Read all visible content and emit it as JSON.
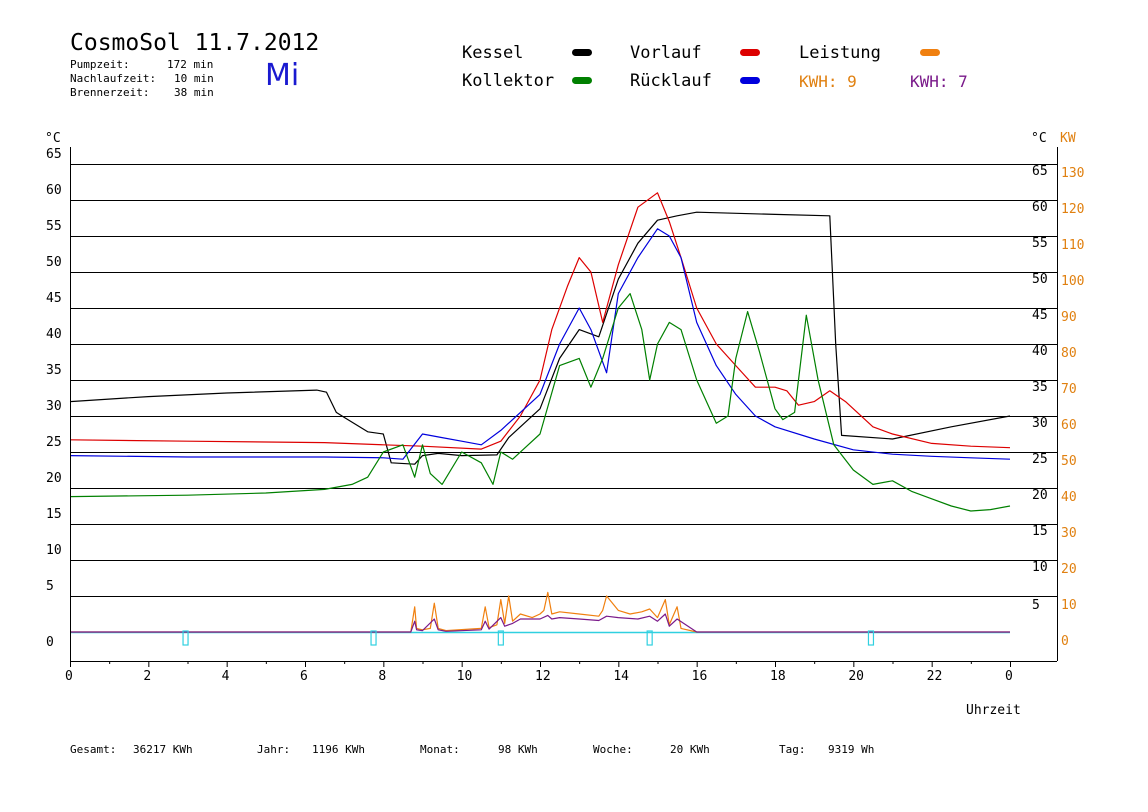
{
  "header": {
    "title": "CosmoSol 11.7.2012",
    "weekday": "Mi",
    "stats": [
      {
        "label": "Pumpzeit:",
        "value": "172 min"
      },
      {
        "label": "Nachlaufzeit:",
        "value": "10 min"
      },
      {
        "label": "Brennerzeit:",
        "value": "38 min"
      }
    ]
  },
  "legend": {
    "items": [
      {
        "name": "Kessel",
        "color": "#000000"
      },
      {
        "name": "Vorlauf",
        "color": "#dd0000"
      },
      {
        "name": "Leistung",
        "color": "#f08010"
      },
      {
        "name": "Kollektor",
        "color": "#008000"
      },
      {
        "name": "Rücklauf",
        "color": "#0000dd"
      }
    ],
    "kwh_orange": "KWH: 9",
    "kwh_purple": "KWH: 7",
    "kwh_orange_color": "#e08010",
    "kwh_purple_color": "#7a1a8a"
  },
  "footer": {
    "items": [
      {
        "label": "Gesamt:",
        "value": "36217 KWh"
      },
      {
        "label": "Jahr:",
        "value": "1196 KWh"
      },
      {
        "label": "Monat:",
        "value": "98 KWh"
      },
      {
        "label": "Woche:",
        "value": "20 KWh"
      },
      {
        "label": "Tag:",
        "value": "9319 Wh"
      }
    ]
  },
  "chart_data": {
    "type": "line",
    "xlabel": "Uhrzeit",
    "ylabel_left": "°C",
    "ylabel_right_temp": "°C",
    "ylabel_right_power": "KW",
    "xlim": [
      0,
      24
    ],
    "ylim": [
      -4,
      70
    ],
    "x_ticks": [
      "0",
      "2",
      "4",
      "6",
      "8",
      "10",
      "12",
      "14",
      "16",
      "18",
      "20",
      "22",
      "0"
    ],
    "y_ticks_left": [
      "0",
      "5",
      "10",
      "15",
      "20",
      "25",
      "30",
      "35",
      "40",
      "45",
      "50",
      "55",
      "60",
      "65"
    ],
    "y_ticks_right": [
      "5",
      "10",
      "15",
      "20",
      "25",
      "30",
      "35",
      "40",
      "45",
      "50",
      "55",
      "60",
      "65"
    ],
    "y_ticks_power": [
      "0",
      "10",
      "20",
      "30",
      "40",
      "50",
      "60",
      "70",
      "80",
      "90",
      "100",
      "110",
      "120",
      "130"
    ],
    "pump_markers_x": [
      2.95,
      7.75,
      11.0,
      14.8,
      20.45
    ],
    "series": [
      {
        "name": "Kessel",
        "color": "#000000",
        "x": [
          0,
          2,
          4,
          6.3,
          6.55,
          6.8,
          7.0,
          7.6,
          8.0,
          8.2,
          8.8,
          9.0,
          9.4,
          10.0,
          10.9,
          11.2,
          12.0,
          12.5,
          13.0,
          13.5,
          14.0,
          14.5,
          15.0,
          15.5,
          16.0,
          18.0,
          19.4,
          19.55,
          19.7,
          21.0,
          22.5,
          24.0
        ],
        "y": [
          32,
          32.7,
          33.2,
          33.6,
          33.3,
          30.5,
          29.8,
          27.8,
          27.5,
          23.5,
          23.3,
          24.5,
          24.8,
          24.5,
          24.6,
          27.0,
          31.0,
          38.0,
          42.0,
          41.0,
          49.0,
          54.0,
          57.2,
          57.8,
          58.3,
          58.0,
          57.8,
          40.0,
          27.3,
          26.8,
          28.5,
          30.0
        ]
      },
      {
        "name": "Vorlauf",
        "color": "#dd0000",
        "x": [
          0,
          3,
          6.5,
          8.0,
          9.0,
          10.5,
          11.0,
          11.5,
          12.0,
          12.3,
          12.7,
          13.0,
          13.3,
          13.6,
          14.0,
          14.5,
          15.0,
          15.3,
          15.6,
          16.0,
          16.5,
          17.0,
          17.5,
          18.0,
          18.3,
          18.6,
          19.0,
          19.4,
          19.8,
          20.5,
          21.0,
          22.0,
          23.0,
          24.0
        ],
        "y": [
          26.7,
          26.5,
          26.3,
          26.0,
          25.8,
          25.4,
          26.5,
          30.0,
          35.0,
          42.0,
          48.0,
          52.0,
          50.0,
          43.0,
          51.0,
          59.0,
          61.0,
          57.0,
          52.0,
          45.0,
          40.0,
          37.0,
          34.0,
          34.0,
          33.5,
          31.5,
          32.0,
          33.5,
          32.0,
          28.5,
          27.5,
          26.2,
          25.8,
          25.6
        ]
      },
      {
        "name": "Rücklauf",
        "color": "#0000dd",
        "x": [
          0,
          3,
          6.5,
          8.0,
          8.5,
          9.0,
          9.5,
          10.0,
          10.5,
          11.0,
          11.5,
          12.0,
          12.5,
          13.0,
          13.3,
          13.7,
          14.0,
          14.5,
          15.0,
          15.3,
          15.6,
          16.0,
          16.5,
          17.0,
          17.5,
          18.0,
          19.0,
          20.0,
          21.0,
          22.0,
          23.0,
          24.0
        ],
        "y": [
          24.5,
          24.3,
          24.3,
          24.2,
          24.0,
          27.5,
          27.0,
          26.5,
          26.0,
          28.0,
          30.5,
          33.0,
          40.0,
          45.0,
          42.0,
          36.0,
          47.0,
          52.0,
          56.0,
          55.0,
          52.0,
          43.0,
          37.0,
          33.0,
          30.0,
          28.5,
          26.8,
          25.3,
          24.7,
          24.4,
          24.2,
          24.0
        ]
      },
      {
        "name": "Kollektor",
        "color": "#008000",
        "x": [
          0,
          3,
          5,
          6.5,
          7.2,
          7.6,
          8.0,
          8.5,
          8.8,
          9.0,
          9.2,
          9.5,
          10.0,
          10.5,
          10.8,
          11.0,
          11.3,
          11.6,
          12.0,
          12.5,
          13.0,
          13.3,
          13.6,
          14.0,
          14.3,
          14.6,
          14.8,
          15.0,
          15.3,
          15.6,
          16.0,
          16.5,
          16.8,
          17.0,
          17.3,
          17.6,
          18.0,
          18.2,
          18.5,
          18.8,
          19.1,
          19.5,
          20.0,
          20.5,
          21.0,
          21.5,
          22.0,
          22.5,
          23.0,
          23.5,
          24.0
        ],
        "y": [
          18.8,
          19.0,
          19.3,
          19.8,
          20.5,
          21.5,
          25.0,
          26.0,
          21.5,
          26.0,
          22.0,
          20.5,
          25.0,
          23.5,
          20.5,
          25.0,
          24.0,
          25.5,
          27.5,
          37.0,
          38.0,
          34.0,
          38.0,
          45.0,
          47.0,
          42.0,
          35.0,
          40.0,
          43.0,
          42.0,
          35.0,
          29.0,
          30.0,
          38.0,
          44.5,
          39.0,
          31.0,
          29.5,
          30.5,
          44.0,
          35.0,
          26.0,
          22.5,
          20.5,
          21.0,
          19.5,
          18.5,
          17.5,
          16.8,
          17.0,
          17.5
        ]
      },
      {
        "name": "Leistung",
        "color": "#f08010",
        "x": [
          0,
          8.7,
          8.8,
          8.85,
          9.0,
          9.2,
          9.3,
          9.4,
          9.6,
          10.5,
          10.6,
          10.7,
          10.9,
          11.0,
          11.1,
          11.2,
          11.3,
          11.5,
          11.8,
          12.0,
          12.1,
          12.2,
          12.3,
          12.5,
          13.0,
          13.5,
          13.6,
          13.7,
          14.0,
          14.3,
          14.6,
          14.8,
          15.0,
          15.2,
          15.3,
          15.5,
          15.6,
          16.0,
          24.0
        ],
        "y": [
          0,
          0,
          3.5,
          0.5,
          0.3,
          0.5,
          4.0,
          0.5,
          0.2,
          0.5,
          3.5,
          0.6,
          1.0,
          4.5,
          1.2,
          5.0,
          1.5,
          2.5,
          2.0,
          2.5,
          3.0,
          5.5,
          2.5,
          2.8,
          2.5,
          2.2,
          3.0,
          5.0,
          3.0,
          2.5,
          2.8,
          3.2,
          2.0,
          4.5,
          1.0,
          3.5,
          0.5,
          0,
          0
        ]
      },
      {
        "name": "",
        "color": "#7a1a8a",
        "x": [
          0,
          8.7,
          8.8,
          8.85,
          9.0,
          9.3,
          9.4,
          9.6,
          10.5,
          10.6,
          10.7,
          11.0,
          11.1,
          11.3,
          11.5,
          12.0,
          12.2,
          12.3,
          12.5,
          13.0,
          13.5,
          13.7,
          14.0,
          14.5,
          14.8,
          15.0,
          15.2,
          15.3,
          15.5,
          16.0,
          24.0
        ],
        "y": [
          0,
          0,
          1.5,
          0.3,
          0.2,
          1.8,
          0.3,
          0.1,
          0.3,
          1.5,
          0.4,
          2.0,
          0.8,
          1.2,
          1.8,
          1.8,
          2.3,
          1.8,
          2.0,
          1.8,
          1.6,
          2.2,
          2.0,
          1.8,
          2.2,
          1.5,
          2.5,
          0.8,
          1.8,
          0,
          0
        ]
      }
    ]
  }
}
